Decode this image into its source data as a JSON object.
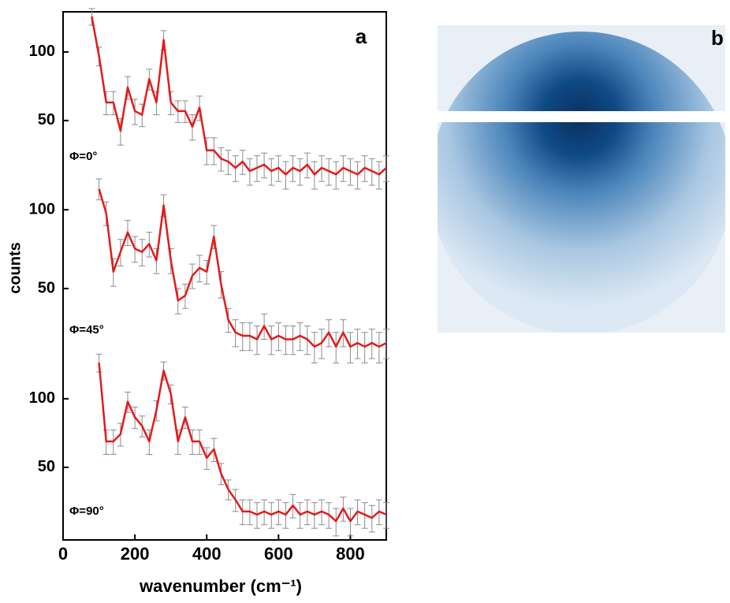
{
  "panel_labels": [
    "a",
    "b"
  ],
  "axes": {
    "x_label": "wavenumber (cm⁻¹)",
    "y_label": "counts",
    "xlim": [
      0,
      900
    ],
    "xticks": [
      0,
      200,
      400,
      600,
      800
    ]
  },
  "chart_data": [
    {
      "type": "line",
      "annotation": "Φ=0°",
      "color": "#e31a1c",
      "error_color": "#8c8c8c",
      "log_y": true,
      "ylim": [
        26,
        150
      ],
      "yticks": [
        50,
        100
      ],
      "x": [
        80,
        100,
        120,
        140,
        160,
        180,
        200,
        220,
        240,
        260,
        280,
        300,
        320,
        340,
        360,
        380,
        400,
        420,
        440,
        460,
        480,
        500,
        520,
        540,
        560,
        580,
        600,
        620,
        640,
        660,
        680,
        700,
        720,
        740,
        760,
        780,
        800,
        820,
        840,
        860,
        880,
        900
      ],
      "values": [
        143,
        96,
        60,
        60,
        45,
        70,
        55,
        53,
        76,
        60,
        113,
        60,
        55,
        55,
        47,
        57,
        37,
        37,
        34,
        33,
        31,
        33,
        30,
        31,
        32,
        30,
        31,
        29,
        31,
        30,
        32,
        29,
        31,
        30,
        29,
        31,
        30,
        29,
        31,
        30,
        29,
        31
      ],
      "errors": [
        12,
        9,
        7,
        7,
        6,
        8,
        7,
        6,
        8,
        7,
        11,
        7,
        6,
        6,
        6,
        7,
        5,
        5,
        4,
        4,
        4,
        4,
        4,
        4,
        4,
        4,
        4,
        4,
        4,
        4,
        4,
        4,
        4,
        4,
        4,
        4,
        4,
        4,
        4,
        4,
        4,
        4
      ]
    },
    {
      "type": "line",
      "annotation": "Φ=45°",
      "color": "#e31a1c",
      "error_color": "#8c8c8c",
      "log_y": true,
      "ylim": [
        27,
        124
      ],
      "yticks": [
        50,
        100
      ],
      "x": [
        100,
        120,
        140,
        160,
        180,
        200,
        220,
        240,
        260,
        280,
        300,
        320,
        340,
        360,
        380,
        400,
        420,
        440,
        460,
        480,
        500,
        520,
        540,
        560,
        580,
        600,
        620,
        640,
        660,
        680,
        700,
        720,
        740,
        760,
        780,
        800,
        820,
        840,
        860,
        880,
        900
      ],
      "values": [
        120,
        97,
        58,
        69,
        82,
        71,
        69,
        74,
        64,
        104,
        64,
        45,
        47,
        56,
        60,
        58,
        79,
        52,
        38,
        34,
        33,
        33,
        32,
        36,
        32,
        33,
        32,
        32,
        33,
        32,
        30,
        31,
        34,
        30,
        34,
        30,
        31,
        30,
        31,
        30,
        31
      ],
      "errors": [
        11,
        10,
        7,
        8,
        9,
        8,
        8,
        8,
        7,
        10,
        7,
        5,
        5,
        6,
        7,
        6,
        8,
        6,
        4,
        4,
        4,
        4,
        4,
        4,
        4,
        4,
        4,
        4,
        4,
        4,
        4,
        4,
        4,
        4,
        4,
        4,
        4,
        4,
        4,
        4,
        4
      ]
    },
    {
      "type": "line",
      "annotation": "Φ=90°",
      "color": "#e31a1c",
      "error_color": "#8c8c8c",
      "log_y": true,
      "ylim": [
        24,
        150
      ],
      "yticks": [
        50,
        100
      ],
      "x": [
        100,
        120,
        140,
        160,
        180,
        200,
        220,
        240,
        260,
        280,
        300,
        320,
        340,
        360,
        380,
        400,
        420,
        440,
        460,
        480,
        500,
        520,
        540,
        560,
        580,
        600,
        620,
        640,
        660,
        680,
        700,
        720,
        740,
        760,
        780,
        800,
        820,
        840,
        860,
        880,
        900
      ],
      "values": [
        144,
        65,
        65,
        70,
        97,
        83,
        76,
        65,
        89,
        133,
        105,
        65,
        83,
        65,
        65,
        55,
        60,
        47,
        40,
        36,
        32,
        32,
        31,
        32,
        31,
        32,
        31,
        34,
        31,
        32,
        31,
        32,
        31,
        29,
        33,
        29,
        32,
        31,
        30,
        32,
        31
      ],
      "errors": [
        13,
        8,
        8,
        8,
        10,
        9,
        8,
        8,
        9,
        12,
        10,
        8,
        9,
        8,
        8,
        6,
        7,
        5,
        4,
        4,
        4,
        4,
        4,
        4,
        4,
        4,
        4,
        4,
        4,
        4,
        4,
        4,
        4,
        4,
        4,
        4,
        4,
        4,
        4,
        4,
        4
      ]
    }
  ]
}
